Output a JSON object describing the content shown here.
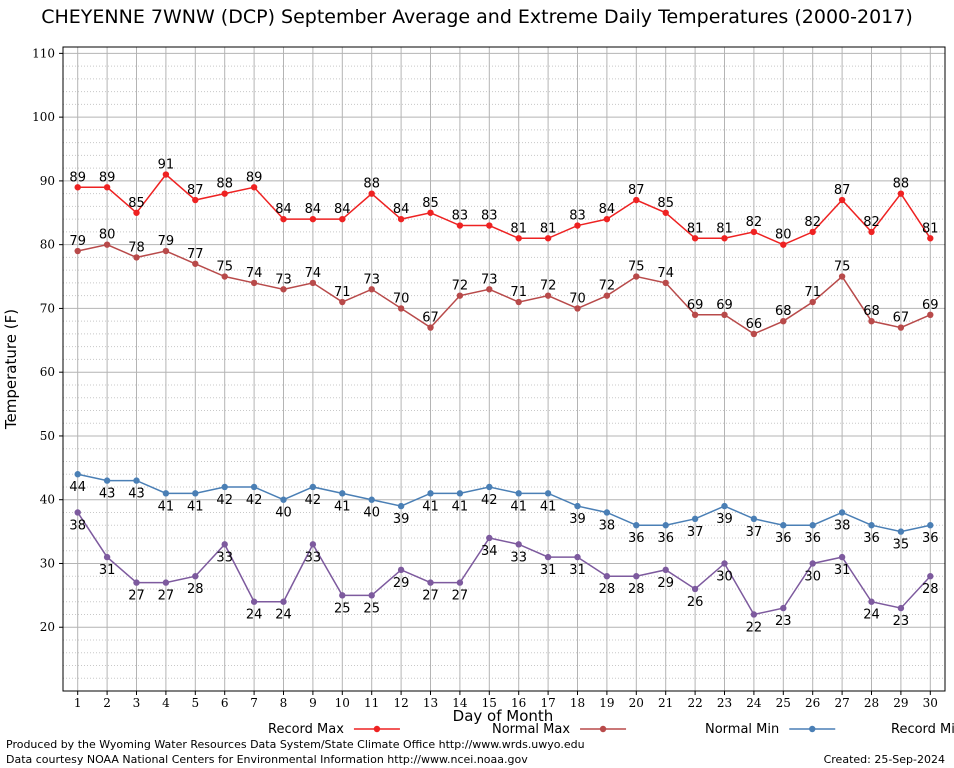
{
  "title": "CHEYENNE 7WNW (DCP) September Average and Extreme Daily Temperatures (2000-2017)",
  "footer": {
    "line1": "Produced by the Wyoming Water Resources Data System/State Climate Office http://www.wrds.uwyo.edu",
    "line2": "Data courtesy NOAA National Centers for Environmental Information http://www.ncei.noaa.gov",
    "created": "Created:  25-Sep-2024"
  },
  "chart_data": {
    "type": "line",
    "xlabel": "Day of Month",
    "ylabel": "Temperature (F)",
    "xlim": [
      0.5,
      30.5
    ],
    "ylim": [
      10,
      111
    ],
    "yticks": [
      20,
      30,
      40,
      50,
      60,
      70,
      80,
      90,
      100,
      110
    ],
    "grid": true,
    "legend_position": "bottom",
    "x": [
      1,
      2,
      3,
      4,
      5,
      6,
      7,
      8,
      9,
      10,
      11,
      12,
      13,
      14,
      15,
      16,
      17,
      18,
      19,
      20,
      21,
      22,
      23,
      24,
      25,
      26,
      27,
      28,
      29,
      30
    ],
    "series": [
      {
        "name": "Record Max",
        "color": "#ee2222",
        "label_side": "above",
        "values": [
          89,
          89,
          85,
          91,
          87,
          88,
          89,
          84,
          84,
          84,
          88,
          84,
          85,
          83,
          83,
          81,
          81,
          83,
          84,
          87,
          85,
          81,
          81,
          82,
          80,
          82,
          87,
          82,
          88,
          81
        ]
      },
      {
        "name": "Normal Max",
        "color": "#b84a4a",
        "label_side": "above",
        "values": [
          79,
          80,
          78,
          79,
          77,
          75,
          74,
          73,
          74,
          71,
          73,
          70,
          67,
          72,
          73,
          71,
          72,
          70,
          72,
          75,
          74,
          69,
          69,
          66,
          68,
          71,
          75,
          68,
          67,
          69
        ]
      },
      {
        "name": "Normal Min",
        "color": "#4a7fb5",
        "label_side": "below",
        "values": [
          44,
          43,
          43,
          41,
          41,
          42,
          42,
          40,
          42,
          41,
          40,
          39,
          41,
          41,
          42,
          41,
          41,
          39,
          38,
          36,
          36,
          37,
          39,
          37,
          36,
          36,
          38,
          36,
          35,
          36
        ]
      },
      {
        "name": "Record Min",
        "color": "#7d5a9e",
        "label_side": "below",
        "values": [
          38,
          31,
          27,
          27,
          28,
          33,
          24,
          24,
          33,
          25,
          25,
          29,
          27,
          27,
          34,
          33,
          31,
          31,
          28,
          28,
          29,
          26,
          30,
          22,
          23,
          30,
          31,
          24,
          23,
          28
        ]
      }
    ]
  }
}
